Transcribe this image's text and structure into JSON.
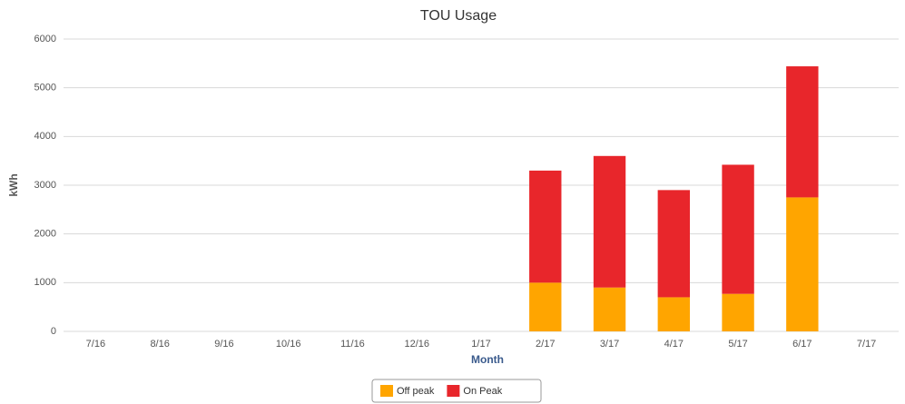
{
  "chart_data": {
    "type": "stacked_bar",
    "title": "TOU Usage",
    "x_label": "Month",
    "y_label": "kWh",
    "categories": [
      "7/16",
      "8/16",
      "9/16",
      "10/16",
      "11/16",
      "12/16",
      "1/17",
      "2/17",
      "3/17",
      "4/17",
      "5/17",
      "6/17",
      "7/17"
    ],
    "series": [
      {
        "name": "Off peak",
        "color": "#ffa500",
        "values": [
          null,
          null,
          null,
          null,
          null,
          null,
          null,
          1000,
          900,
          700,
          770,
          2750,
          null
        ]
      },
      {
        "name": "On Peak",
        "color": "#e8262b",
        "values": [
          null,
          null,
          null,
          null,
          null,
          null,
          null,
          2300,
          2700,
          2200,
          2650,
          2690,
          null
        ]
      }
    ],
    "ylim": [
      0,
      6000
    ],
    "yticks": [
      0,
      1000,
      2000,
      3000,
      4000,
      5000,
      6000
    ],
    "grid": true,
    "legend": "bottom"
  }
}
